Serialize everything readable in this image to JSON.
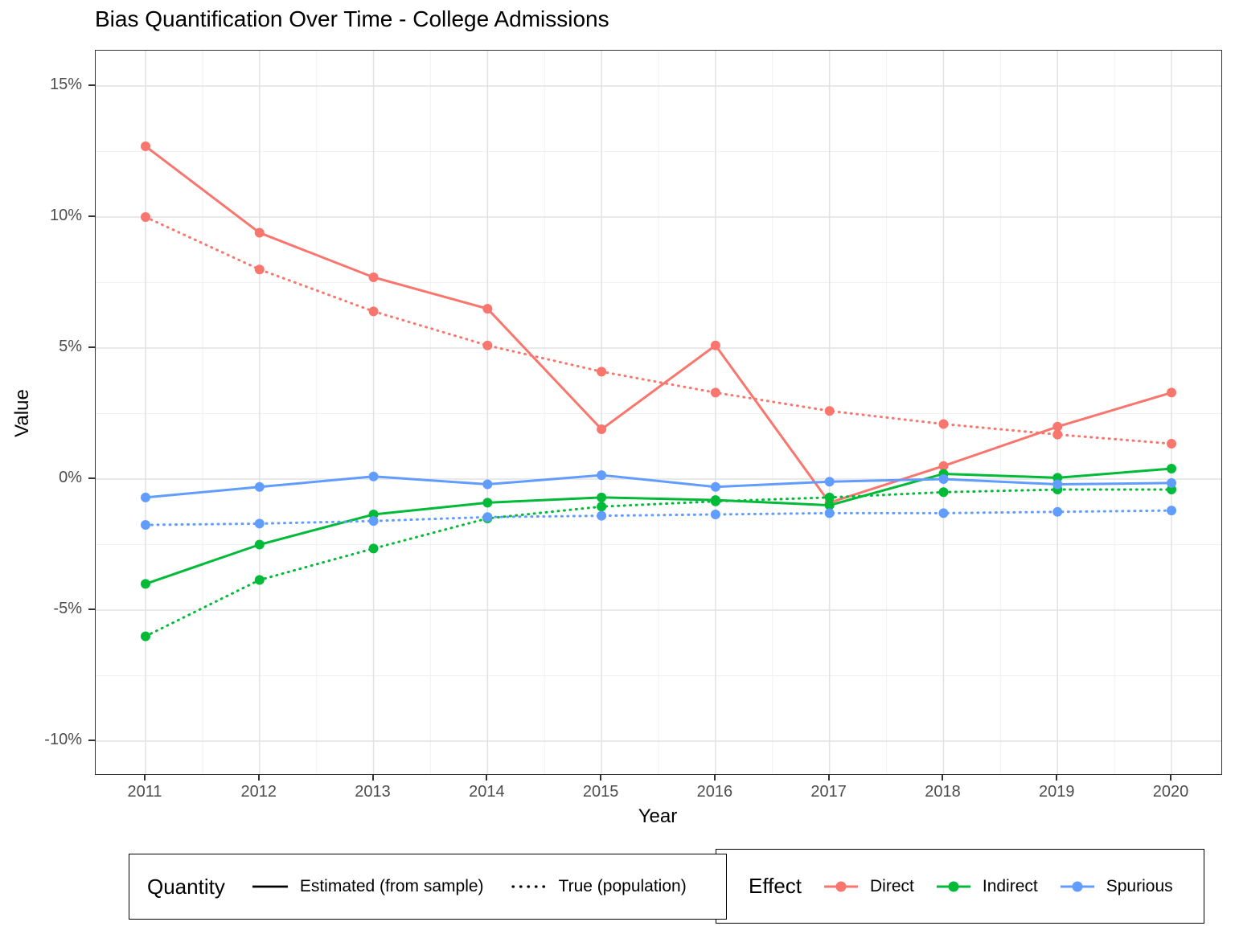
{
  "title": "Bias Quantification Over Time - College Admissions",
  "axes": {
    "x": {
      "title": "Year",
      "tick_labels": [
        "2011",
        "2012",
        "2013",
        "2014",
        "2015",
        "2016",
        "2017",
        "2018",
        "2019",
        "2020"
      ],
      "tick_values": [
        2011,
        2012,
        2013,
        2014,
        2015,
        2016,
        2017,
        2018,
        2019,
        2020
      ]
    },
    "y": {
      "title": "Value",
      "tick_labels": [
        "15%",
        "10%",
        "5%",
        "0%",
        "-5%",
        "-10%"
      ],
      "tick_values": [
        15,
        10,
        5,
        0,
        -5,
        -10
      ]
    }
  },
  "legends": {
    "quantity": {
      "title": "Quantity",
      "items": [
        {
          "label": "Estimated (from sample)",
          "linetype": "solid"
        },
        {
          "label": "True (population)",
          "linetype": "dotted"
        }
      ]
    },
    "effect": {
      "title": "Effect",
      "items": [
        {
          "label": "Direct",
          "color": "#F8766D"
        },
        {
          "label": "Indirect",
          "color": "#00BA38"
        },
        {
          "label": "Spurious",
          "color": "#619CFF"
        }
      ]
    }
  },
  "chart_data": {
    "type": "line",
    "title": "Bias Quantification Over Time - College Admissions",
    "xlabel": "Year",
    "ylabel": "Value",
    "x": [
      2011,
      2012,
      2013,
      2014,
      2015,
      2016,
      2017,
      2018,
      2019,
      2020
    ],
    "ylim": [
      -11.2,
      16.3
    ],
    "y_unit": "percent",
    "grid": true,
    "legend_position": "bottom",
    "series": [
      {
        "effect": "Direct",
        "quantity": "Estimated (from sample)",
        "color": "#F8766D",
        "linetype": "solid",
        "values": [
          12.7,
          9.4,
          7.7,
          6.5,
          1.9,
          5.1,
          -0.9,
          0.5,
          2.0,
          3.3
        ]
      },
      {
        "effect": "Direct",
        "quantity": "True (population)",
        "color": "#F8766D",
        "linetype": "dotted",
        "values": [
          10.0,
          8.0,
          6.4,
          5.1,
          4.1,
          3.3,
          2.6,
          2.1,
          1.7,
          1.35
        ]
      },
      {
        "effect": "Indirect",
        "quantity": "Estimated (from sample)",
        "color": "#00BA38",
        "linetype": "solid",
        "values": [
          -4.0,
          -2.5,
          -1.35,
          -0.9,
          -0.7,
          -0.8,
          -1.0,
          0.2,
          0.05,
          0.4
        ]
      },
      {
        "effect": "Indirect",
        "quantity": "True (population)",
        "color": "#00BA38",
        "linetype": "dotted",
        "values": [
          -6.0,
          -3.85,
          -2.65,
          -1.5,
          -1.05,
          -0.85,
          -0.7,
          -0.5,
          -0.4,
          -0.4
        ]
      },
      {
        "effect": "Spurious",
        "quantity": "Estimated (from sample)",
        "color": "#619CFF",
        "linetype": "solid",
        "values": [
          -0.7,
          -0.3,
          0.1,
          -0.2,
          0.15,
          -0.3,
          -0.1,
          0.0,
          -0.2,
          -0.15
        ]
      },
      {
        "effect": "Spurious",
        "quantity": "True (population)",
        "color": "#619CFF",
        "linetype": "dotted",
        "values": [
          -1.75,
          -1.7,
          -1.6,
          -1.45,
          -1.4,
          -1.35,
          -1.3,
          -1.3,
          -1.25,
          -1.2
        ]
      }
    ]
  }
}
